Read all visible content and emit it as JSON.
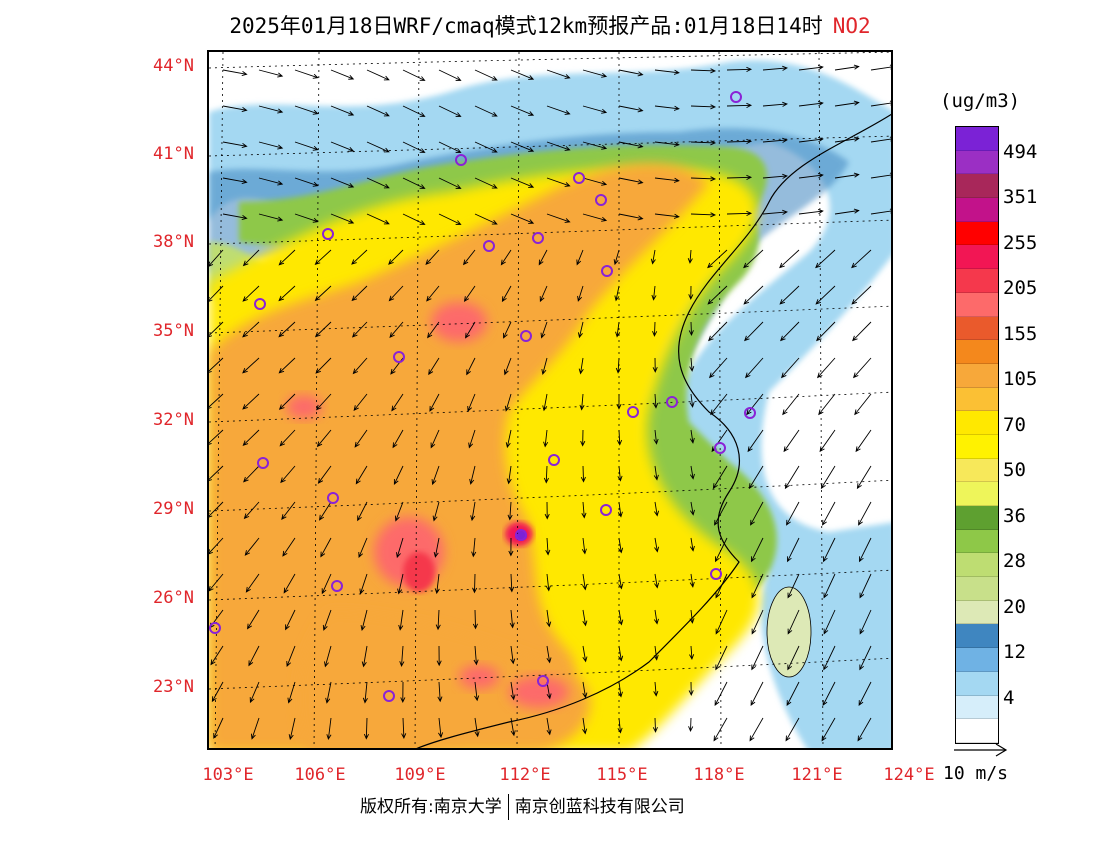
{
  "title": {
    "main": "2025年01月18日WRF/cmaq模式12km预报产品:01月18日14时",
    "species": "NO2"
  },
  "latitude_labels": [
    "44°N",
    "41°N",
    "38°N",
    "35°N",
    "32°N",
    "29°N",
    "26°N",
    "23°N"
  ],
  "longitude_labels": [
    "103°E",
    "106°E",
    "109°E",
    "112°E",
    "115°E",
    "118°E",
    "121°E",
    "124°E"
  ],
  "legend": {
    "unit": "(ug/m3)",
    "labels": [
      "494",
      "351",
      "255",
      "205",
      "155",
      "105",
      "70",
      "50",
      "36",
      "28",
      "20",
      "12",
      "4"
    ],
    "colors_top_to_bottom": [
      "#7b22d6",
      "#9b2fc4",
      "#a8275a",
      "#c2128a",
      "#ff0000",
      "#f21654",
      "#f5384c",
      "#fd6a6a",
      "#ea5a2c",
      "#f4881c",
      "#f7a83a",
      "#fbc034",
      "#ffe800",
      "#fff200",
      "#f7e85a",
      "#eef55a",
      "#5ea030",
      "#8ec848",
      "#bedd72",
      "#c8e08a",
      "#dde9b6",
      "#3f86c0",
      "#6fb2e4",
      "#a4d8f2",
      "#d6eefa",
      "#ffffff"
    ]
  },
  "wind_reference": {
    "label": "10 m/s"
  },
  "copyright": {
    "left": "版权所有:南京大学",
    "right": "南京创蓝科技有限公司"
  },
  "map_colors": {
    "background": "#ffffff",
    "orange": "#f7a83a",
    "yellow": "#ffe800",
    "green": "#8ec848",
    "blue": "#6fb2e4",
    "hotspot": "#f5384c",
    "marker": "#8a22d6"
  }
}
